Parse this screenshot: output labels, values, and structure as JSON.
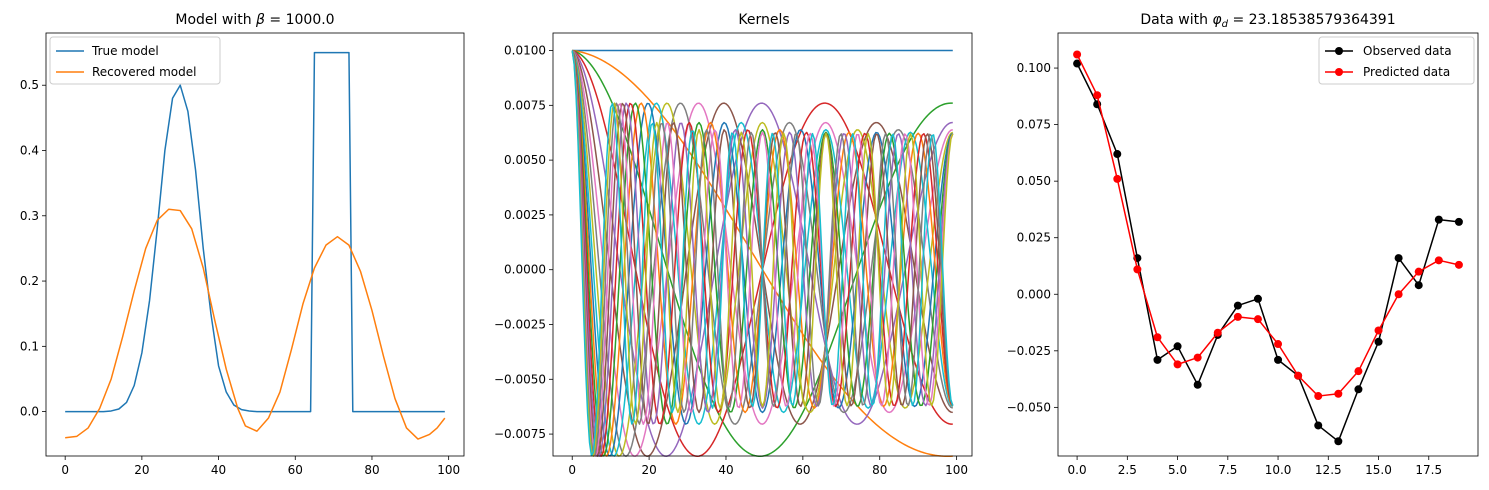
{
  "chart_data": [
    {
      "type": "line",
      "title": "Model with β = 1000.0",
      "title_parts": {
        "prefix": "Model with ",
        "symbol": "β",
        "suffix": " = 1000.0"
      },
      "xlim": [
        -5,
        104
      ],
      "ylim": [
        -0.068,
        0.58
      ],
      "xticks": [
        0,
        20,
        40,
        60,
        80,
        100
      ],
      "yticks": [
        0.0,
        0.1,
        0.2,
        0.3,
        0.4,
        0.5
      ],
      "ytick_labels": [
        "0.0",
        "0.1",
        "0.2",
        "0.3",
        "0.4",
        "0.5"
      ],
      "legend": "top-left",
      "series": [
        {
          "name": "True model",
          "color": "#1f77b4",
          "x": [
            0,
            10,
            12,
            14,
            16,
            18,
            20,
            22,
            24,
            26,
            28,
            30,
            32,
            34,
            36,
            38,
            40,
            42,
            44,
            46,
            48,
            50,
            64,
            65,
            74,
            75,
            99
          ],
          "y": [
            0,
            0,
            0.001,
            0.004,
            0.014,
            0.04,
            0.09,
            0.17,
            0.28,
            0.4,
            0.48,
            0.5,
            0.46,
            0.37,
            0.25,
            0.15,
            0.07,
            0.03,
            0.01,
            0.003,
            0.001,
            0,
            0,
            0.55,
            0.55,
            0,
            0
          ]
        },
        {
          "name": "Recovered model",
          "color": "#ff7f0e",
          "x": [
            0,
            3,
            6,
            9,
            12,
            15,
            18,
            21,
            24,
            27,
            30,
            33,
            36,
            39,
            42,
            45,
            47,
            50,
            53,
            56,
            59,
            62,
            65,
            68,
            71,
            74,
            77,
            80,
            83,
            86,
            89,
            92,
            95,
            97,
            99
          ],
          "y": [
            -0.04,
            -0.038,
            -0.025,
            0.005,
            0.05,
            0.115,
            0.185,
            0.25,
            0.293,
            0.31,
            0.308,
            0.28,
            0.22,
            0.14,
            0.065,
            0.005,
            -0.022,
            -0.03,
            -0.01,
            0.03,
            0.095,
            0.165,
            0.22,
            0.255,
            0.268,
            0.255,
            0.215,
            0.155,
            0.085,
            0.02,
            -0.025,
            -0.042,
            -0.035,
            -0.025,
            -0.01
          ]
        }
      ]
    },
    {
      "type": "line",
      "title": "Kernels",
      "xlim": [
        -5,
        104
      ],
      "ylim": [
        -0.0085,
        0.0108
      ],
      "xticks": [
        0,
        20,
        40,
        60,
        80,
        100
      ],
      "yticks": [
        0.01,
        0.0075,
        0.005,
        0.0025,
        0.0,
        -0.0025,
        -0.005,
        -0.0075
      ],
      "ytick_labels": [
        "0.0100",
        "0.0075",
        "0.0050",
        "0.0025",
        "0.0000",
        "−0.0025",
        "−0.0050",
        "−0.0075"
      ],
      "kernel_count": 20,
      "kernel_params": {
        "p": 0.25,
        "q": 0.25,
        "x_max": 99
      },
      "palette": [
        "#1f77b4",
        "#ff7f0e",
        "#2ca02c",
        "#d62728",
        "#9467bd",
        "#8c564b",
        "#e377c2",
        "#7f7f7f",
        "#bcbd22",
        "#17becf"
      ]
    },
    {
      "type": "line",
      "title": "Data with φd = 23.18538579364391",
      "title_parts": {
        "prefix": "Data with ",
        "symbol": "φ",
        "sub": "d",
        "suffix": " = 23.18538579364391"
      },
      "xlim": [
        -0.95,
        19.95
      ],
      "ylim": [
        -0.0715,
        0.1155
      ],
      "xticks": [
        0,
        2.5,
        5,
        7.5,
        10,
        12.5,
        15,
        17.5
      ],
      "xtick_labels": [
        "0.0",
        "2.5",
        "5.0",
        "7.5",
        "10.0",
        "12.5",
        "15.0",
        "17.5"
      ],
      "yticks": [
        0.1,
        0.075,
        0.05,
        0.025,
        0.0,
        -0.025,
        -0.05
      ],
      "ytick_labels": [
        "0.100",
        "0.075",
        "0.050",
        "0.025",
        "0.000",
        "−0.025",
        "−0.050"
      ],
      "legend": "top-right",
      "x": [
        0,
        1,
        2,
        3,
        4,
        5,
        6,
        7,
        8,
        9,
        10,
        11,
        12,
        13,
        14,
        15,
        16,
        17,
        18,
        19
      ],
      "series": [
        {
          "name": "Observed data",
          "color": "#000000",
          "values": [
            0.102,
            0.084,
            0.062,
            0.016,
            -0.029,
            -0.023,
            -0.04,
            -0.018,
            -0.005,
            -0.002,
            -0.029,
            -0.036,
            -0.058,
            -0.065,
            -0.042,
            -0.021,
            0.016,
            0.004,
            0.033,
            0.032
          ]
        },
        {
          "name": "Predicted data",
          "color": "#ff0000",
          "values": [
            0.106,
            0.088,
            0.051,
            0.011,
            -0.019,
            -0.031,
            -0.028,
            -0.017,
            -0.01,
            -0.011,
            -0.022,
            -0.036,
            -0.045,
            -0.044,
            -0.034,
            -0.016,
            0.0,
            0.01,
            0.015,
            0.013
          ]
        }
      ]
    }
  ]
}
